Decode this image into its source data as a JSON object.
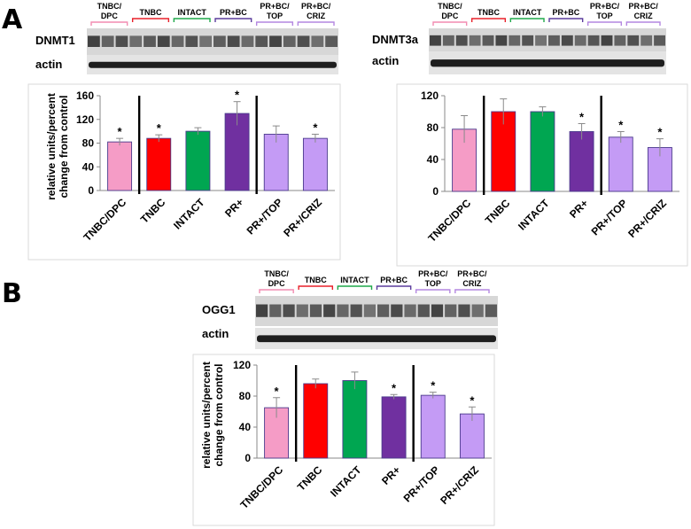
{
  "figure": {
    "panel_a_letter": "A",
    "panel_b_letter": "B",
    "groups": [
      "TNBC/\nDPC",
      "TNBC",
      "INTACT",
      "PR+BC",
      "PR+BC/\nTOP",
      "PR+BC/\nCRIZ"
    ],
    "group_colors": [
      "#f28cb1",
      "#e8202a",
      "#1fa84a",
      "#5a3b9c",
      "#b487e0",
      "#b487e0"
    ],
    "blots": [
      {
        "protein": "DNMT1",
        "loading": "actin"
      },
      {
        "protein": "DNMT3a",
        "loading": "actin"
      },
      {
        "protein": "OGG1",
        "loading": "actin"
      }
    ]
  },
  "chart_data": [
    {
      "type": "bar",
      "title": "",
      "xlabel": "",
      "ylabel": "relative units/percent change from control",
      "ylim": [
        0,
        160
      ],
      "yticks": [
        0,
        40,
        80,
        120,
        160
      ],
      "categories": [
        "TNBC/DPC",
        "TNBC",
        "INTACT",
        "PR+",
        "PR+/TOP",
        "PR+/CRIZ"
      ],
      "values": [
        82,
        88,
        100,
        130,
        95,
        88
      ],
      "errors": [
        6,
        6,
        6,
        20,
        14,
        7
      ],
      "significant": [
        "*",
        "*",
        "",
        "*",
        "",
        "*"
      ],
      "colors": [
        "#f59cc6",
        "#ff0000",
        "#00a651",
        "#7030a0",
        "#c49bf5",
        "#c49bf5"
      ],
      "separators_after": [
        0,
        3
      ]
    },
    {
      "type": "bar",
      "title": "",
      "xlabel": "",
      "ylabel": "",
      "ylim": [
        0,
        120
      ],
      "yticks": [
        0,
        40,
        80,
        120
      ],
      "categories": [
        "TNBC/DPC",
        "TNBC",
        "INTACT",
        "PR+",
        "PR+/TOP",
        "PR+/CRIZ"
      ],
      "values": [
        78,
        100,
        100,
        75,
        68,
        55
      ],
      "errors": [
        17,
        16,
        6,
        10,
        7,
        11
      ],
      "significant": [
        "",
        "",
        "",
        "*",
        "*",
        "*"
      ],
      "colors": [
        "#f59cc6",
        "#ff0000",
        "#00a651",
        "#7030a0",
        "#c49bf5",
        "#c49bf5"
      ],
      "separators_after": [
        0,
        3
      ]
    },
    {
      "type": "bar",
      "title": "",
      "xlabel": "",
      "ylabel": "relative units/percent change from control",
      "ylim": [
        0,
        120
      ],
      "yticks": [
        0,
        40,
        80,
        120
      ],
      "categories": [
        "TNBC/DPC",
        "TNBC",
        "INTACT",
        "PR+",
        "PR+/TOP",
        "PR+/CRIZ"
      ],
      "values": [
        65,
        96,
        100,
        79,
        81,
        57
      ],
      "errors": [
        13,
        6,
        11,
        3,
        4,
        9
      ],
      "significant": [
        "*",
        "",
        "",
        "*",
        "*",
        "*"
      ],
      "colors": [
        "#f59cc6",
        "#ff0000",
        "#00a651",
        "#7030a0",
        "#c49bf5",
        "#c49bf5"
      ],
      "separators_after": [
        0,
        3
      ]
    }
  ]
}
